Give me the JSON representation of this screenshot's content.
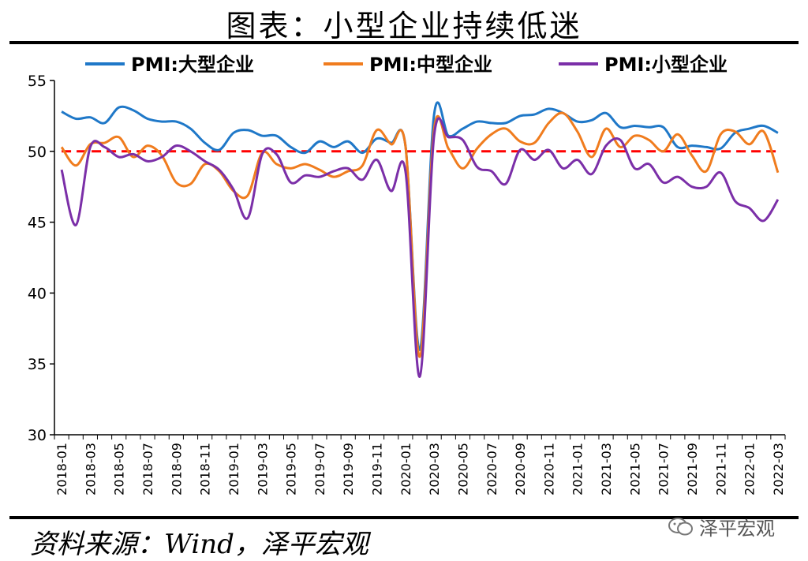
{
  "header": {
    "title": "图表：小型企业持续低迷"
  },
  "footer": {
    "source": "资料来源：Wind，泽平宏观",
    "watermark": "泽平宏观"
  },
  "chart_data": {
    "type": "line",
    "title": "图表：小型企业持续低迷",
    "ylim": [
      30,
      55
    ],
    "yticks": [
      30,
      35,
      40,
      45,
      50,
      55
    ],
    "reference_line": {
      "value": 50,
      "color": "#ff0000",
      "style": "dashed"
    },
    "legend_position": "top",
    "x": [
      "2018-01",
      "2018-02",
      "2018-03",
      "2018-04",
      "2018-05",
      "2018-06",
      "2018-07",
      "2018-08",
      "2018-09",
      "2018-10",
      "2018-11",
      "2018-12",
      "2019-01",
      "2019-02",
      "2019-03",
      "2019-04",
      "2019-05",
      "2019-06",
      "2019-07",
      "2019-08",
      "2019-09",
      "2019-10",
      "2019-11",
      "2019-12",
      "2020-01",
      "2020-02",
      "2020-03",
      "2020-04",
      "2020-05",
      "2020-06",
      "2020-07",
      "2020-08",
      "2020-09",
      "2020-10",
      "2020-11",
      "2020-12",
      "2021-01",
      "2021-02",
      "2021-03",
      "2021-04",
      "2021-05",
      "2021-06",
      "2021-07",
      "2021-08",
      "2021-09",
      "2021-10",
      "2021-11",
      "2021-12",
      "2022-01",
      "2022-02",
      "2022-03"
    ],
    "x_tick_labels": [
      "2018-01",
      "2018-03",
      "2018-05",
      "2018-07",
      "2018-09",
      "2018-11",
      "2019-01",
      "2019-03",
      "2019-05",
      "2019-07",
      "2019-09",
      "2019-11",
      "2020-01",
      "2020-03",
      "2020-05",
      "2020-07",
      "2020-09",
      "2020-11",
      "2021-01",
      "2021-03",
      "2021-05",
      "2021-07",
      "2021-09",
      "2021-11",
      "2022-01",
      "2022-03"
    ],
    "series": [
      {
        "name": "PMI:大型企业",
        "color": "#1f78c8",
        "values": [
          52.8,
          52.3,
          52.4,
          52.0,
          53.1,
          52.9,
          52.3,
          52.1,
          52.1,
          51.6,
          50.6,
          50.1,
          51.3,
          51.5,
          51.1,
          51.1,
          50.3,
          49.9,
          50.7,
          50.3,
          50.7,
          49.9,
          50.9,
          50.6,
          50.4,
          36.0,
          52.6,
          51.1,
          51.6,
          52.1,
          52.0,
          52.0,
          52.5,
          52.6,
          53.0,
          52.7,
          52.1,
          52.2,
          52.7,
          51.7,
          51.8,
          51.7,
          51.7,
          50.3,
          50.4,
          50.3,
          50.2,
          51.3,
          51.6,
          51.8,
          51.3
        ]
      },
      {
        "name": "PMI:中型企业",
        "color": "#f07c1e",
        "values": [
          50.3,
          49.0,
          50.5,
          50.6,
          51.0,
          49.6,
          50.4,
          49.7,
          47.8,
          47.7,
          49.1,
          48.6,
          47.2,
          46.9,
          49.9,
          49.1,
          48.8,
          49.1,
          48.7,
          48.2,
          48.6,
          49.0,
          51.5,
          50.5,
          50.4,
          35.5,
          51.6,
          50.2,
          48.8,
          50.2,
          51.2,
          51.6,
          50.7,
          50.6,
          52.0,
          52.7,
          51.4,
          49.6,
          51.6,
          50.3,
          51.1,
          50.8,
          50.0,
          51.2,
          49.7,
          48.6,
          51.2,
          51.4,
          50.5,
          51.4,
          48.5
        ]
      },
      {
        "name": "PMI:小型企业",
        "color": "#7b2fa8",
        "values": [
          48.7,
          44.8,
          50.3,
          50.3,
          49.6,
          49.8,
          49.3,
          49.6,
          50.4,
          50.0,
          49.3,
          48.7,
          47.3,
          45.3,
          49.8,
          49.8,
          47.8,
          48.3,
          48.2,
          48.6,
          48.8,
          48.0,
          49.4,
          47.2,
          48.6,
          34.1,
          51.1,
          51.0,
          50.8,
          48.9,
          48.6,
          47.7,
          50.1,
          49.4,
          50.1,
          48.8,
          49.4,
          48.4,
          50.4,
          50.8,
          48.8,
          49.1,
          47.8,
          48.2,
          47.5,
          47.5,
          48.5,
          46.5,
          46.0,
          45.1,
          46.6
        ]
      }
    ]
  }
}
